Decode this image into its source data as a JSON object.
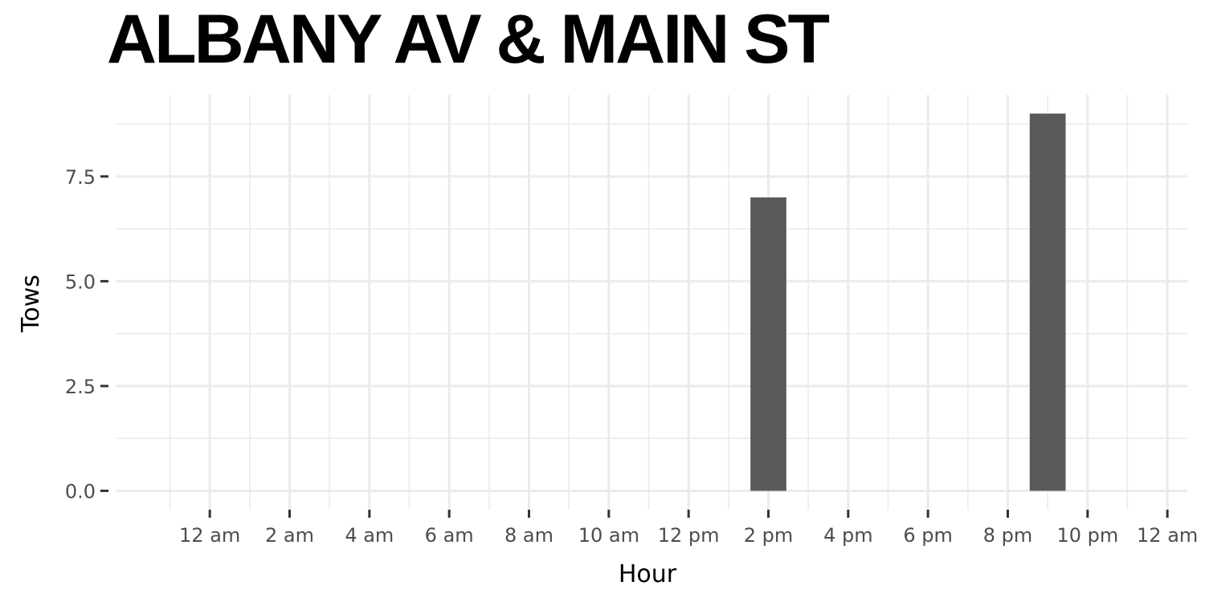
{
  "chart_data": {
    "type": "bar",
    "title": "ALBANY AV & MAIN ST",
    "xlabel": "Hour",
    "ylabel": "Tows",
    "x": [
      14,
      21
    ],
    "values": [
      7,
      9
    ],
    "xlim": [
      -2.5,
      24.5
    ],
    "ylim": [
      -0.45,
      9.45
    ],
    "x_ticks": [
      0,
      2,
      4,
      6,
      8,
      10,
      12,
      14,
      16,
      18,
      20,
      22,
      24
    ],
    "x_tick_labels": [
      "12 am",
      "2 am",
      "4 am",
      "6 am",
      "8 am",
      "10 am",
      "12 pm",
      "2 pm",
      "4 pm",
      "6 pm",
      "8 pm",
      "10 pm",
      "12 am"
    ],
    "y_ticks": [
      0,
      2.5,
      5,
      7.5
    ],
    "y_tick_labels": [
      "0.0",
      "2.5",
      "5.0",
      "7.5"
    ],
    "bar_width_hours": 0.9,
    "grid": true,
    "bar_color": "#595959",
    "grid_color": "#ebebeb",
    "background": "#ffffff"
  }
}
